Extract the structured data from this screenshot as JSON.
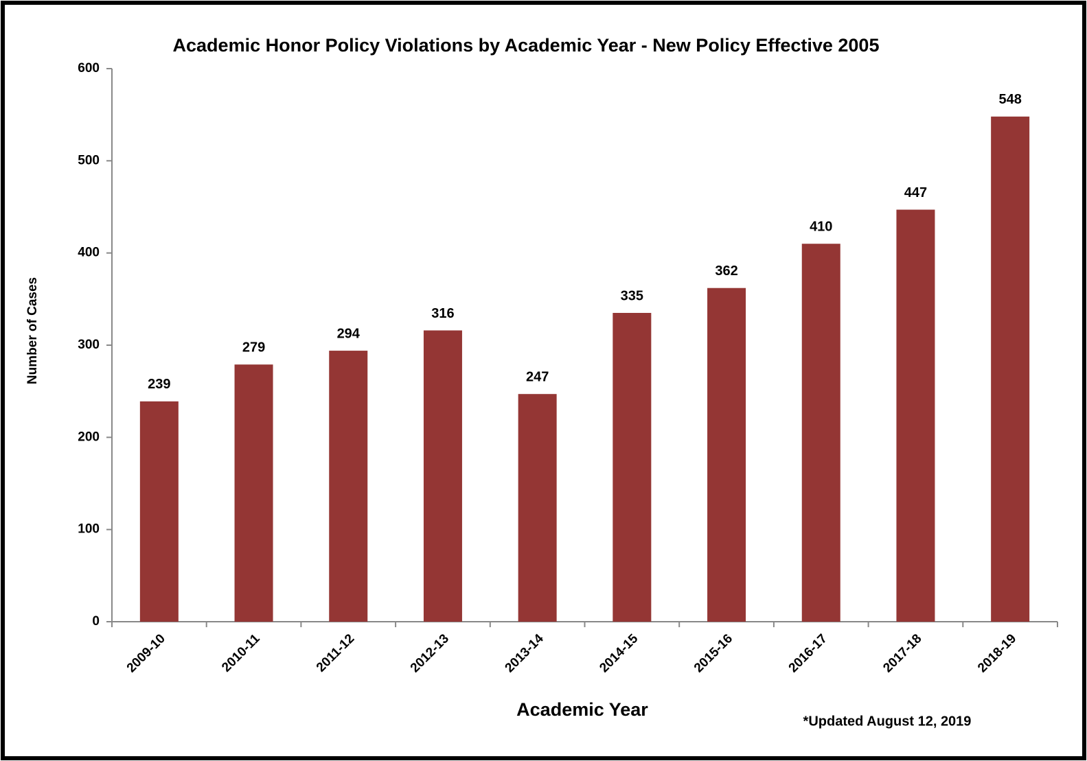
{
  "chart_data": {
    "type": "bar",
    "title": "Academic Honor Policy Violations by Academic Year - New Policy Effective 2005",
    "y_label": "Number of Cases",
    "x_label": "Academic Year",
    "annotation": "*Updated August 12, 2019",
    "categories": [
      "2009-10",
      "2010-11",
      "2011-12",
      "2012-13",
      "2013-14",
      "2014-15",
      "2015-16",
      "2016-17",
      "2017-18",
      "2018-19"
    ],
    "values": [
      239,
      279,
      294,
      316,
      247,
      335,
      362,
      410,
      447,
      548
    ],
    "color": "#943634",
    "ylim": [
      0,
      600
    ],
    "yticks": [
      0,
      100,
      200,
      300,
      400,
      500,
      600
    ],
    "grid": false
  }
}
